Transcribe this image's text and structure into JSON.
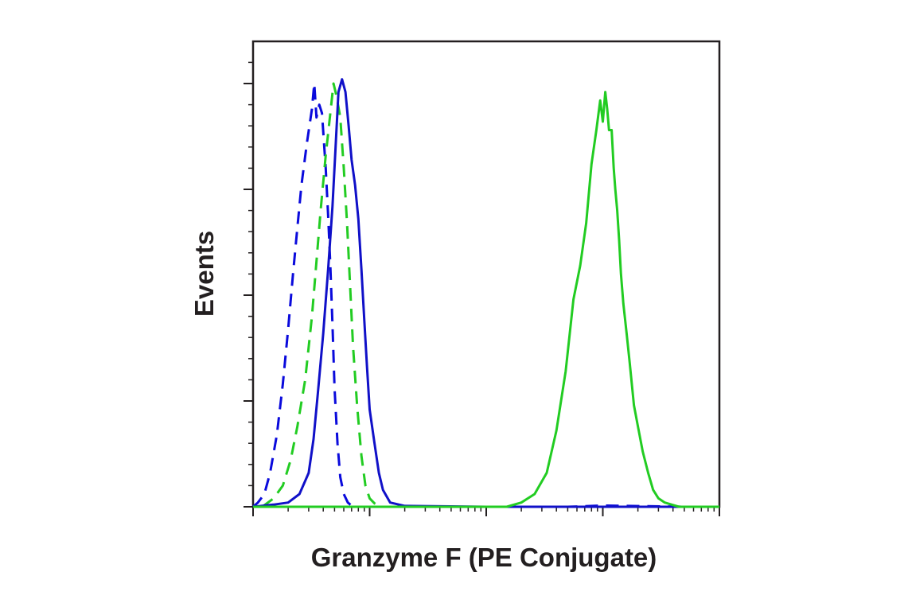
{
  "chart_data": {
    "type": "line",
    "title": "",
    "xlabel": "Granzyme F (PE Conjugate)",
    "ylabel": "Events",
    "x_scale": "log",
    "xlim": [
      1,
      10000
    ],
    "ylim": [
      0,
      100
    ],
    "grid": false,
    "legend": "none",
    "series": [
      {
        "color": "#0a0adc",
        "dash": "dashed",
        "x": [
          1.0,
          1.1,
          1.25,
          1.4,
          1.6,
          1.8,
          2.0,
          2.2,
          2.4,
          2.6,
          2.9,
          3.2,
          3.35,
          3.5,
          3.7,
          3.9,
          4.2,
          4.4,
          4.6,
          4.8,
          5.0,
          5.3,
          5.6,
          6.0,
          6.5,
          7.2,
          8.0,
          10.0,
          500.0,
          1000.0,
          5000.0,
          10000.0
        ],
        "y": [
          0,
          1,
          3,
          8,
          17,
          29,
          42,
          55,
          66,
          76,
          86,
          94,
          100,
          92,
          95,
          93,
          80,
          69,
          57,
          43,
          28,
          15,
          7,
          3,
          1,
          0,
          0,
          0,
          0,
          0.3,
          0,
          0
        ]
      },
      {
        "color": "#22cc22",
        "dash": "dashed",
        "x": [
          1.2,
          1.5,
          1.8,
          2.1,
          2.4,
          2.8,
          3.2,
          3.5,
          3.8,
          4.2,
          4.6,
          4.9,
          5.2,
          5.6,
          6.0,
          6.4,
          6.8,
          7.2,
          7.8,
          8.5,
          9.2,
          10.0,
          11.0,
          12.5,
          15.0,
          50.0,
          10000.0
        ],
        "y": [
          0,
          2,
          5,
          11,
          19,
          30,
          45,
          58,
          70,
          83,
          93,
          100,
          97,
          92,
          80,
          67,
          52,
          38,
          24,
          12,
          5,
          2,
          0.8,
          0,
          0,
          0,
          0
        ]
      },
      {
        "color": "#1010c8",
        "dash": "solid",
        "x": [
          1.0,
          1.5,
          2.0,
          2.5,
          3.0,
          3.3,
          3.6,
          4.0,
          4.4,
          4.8,
          5.1,
          5.4,
          5.8,
          6.2,
          6.6,
          7.0,
          7.5,
          8.0,
          8.5,
          9.0,
          9.5,
          10.0,
          11.0,
          12.0,
          13.0,
          15.0,
          20.0,
          100.0,
          5000.0,
          10000.0
        ],
        "y": [
          0,
          0.5,
          1,
          3,
          8,
          16,
          27,
          41,
          56,
          71,
          85,
          98,
          101,
          98,
          90,
          82,
          76,
          68,
          56,
          44,
          33,
          23,
          15,
          8,
          4,
          1,
          0.2,
          0,
          0,
          0
        ]
      },
      {
        "color": "#22cc22",
        "dash": "solid",
        "x": [
          1.0,
          150.0,
          200.0,
          260.0,
          330.0,
          400.0,
          480.0,
          560.0,
          640.0,
          720.0,
          800.0,
          880.0,
          950.0,
          1000.0,
          1050.0,
          1090.0,
          1130.0,
          1190.0,
          1240.0,
          1280.0,
          1330.0,
          1380.0,
          1430.0,
          1500.0,
          1600.0,
          1700.0,
          1850.0,
          2000.0,
          2200.0,
          2450.0,
          2700.0,
          3000.0,
          3400.0,
          3900.0,
          4500.0,
          10000.0
        ],
        "y": [
          0,
          0,
          1,
          3,
          8,
          18,
          32,
          49,
          57,
          67,
          81,
          89,
          96,
          91,
          98,
          94,
          89,
          89,
          80,
          75,
          70,
          63,
          55,
          48,
          41,
          34,
          24,
          19,
          13,
          8,
          4,
          2,
          1,
          0.5,
          0,
          0
        ]
      }
    ]
  }
}
